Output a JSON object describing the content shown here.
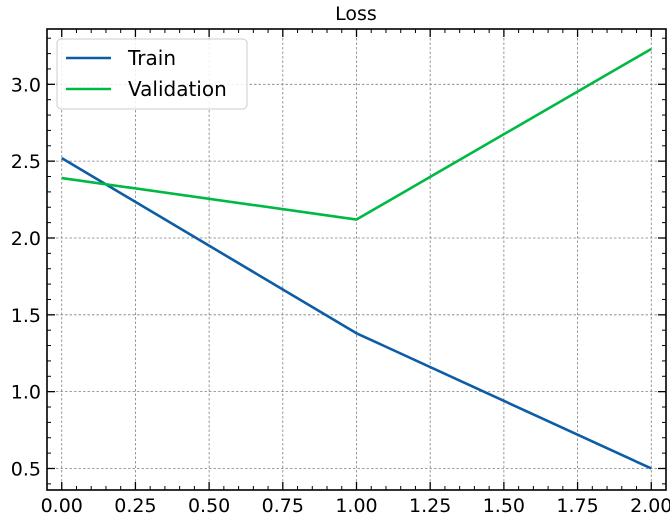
{
  "chart_data": {
    "type": "line",
    "title": "Loss",
    "xlabel": "",
    "ylabel": "",
    "x": [
      0,
      1,
      2
    ],
    "series": [
      {
        "name": "Train",
        "values": [
          2.52,
          1.38,
          0.5
        ],
        "color": "#0c5da5"
      },
      {
        "name": "Validation",
        "values": [
          2.39,
          2.12,
          3.23
        ],
        "color": "#00b945"
      }
    ],
    "xlim": [
      -0.05,
      2.05
    ],
    "ylim": [
      0.36,
      3.36
    ],
    "xticks": [
      "0.00",
      "0.25",
      "0.50",
      "0.75",
      "1.00",
      "1.25",
      "1.50",
      "1.75",
      "2.00"
    ],
    "yticks": [
      "0.5",
      "1.0",
      "1.5",
      "2.0",
      "2.5",
      "3.0"
    ],
    "grid": true,
    "legend_position": "upper-left"
  }
}
